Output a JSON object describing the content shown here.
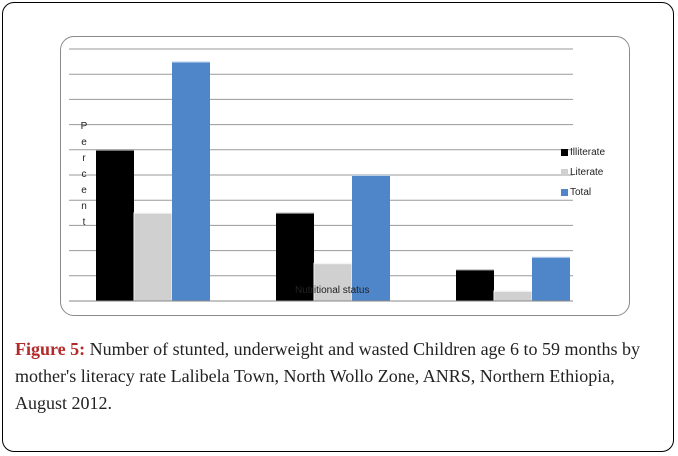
{
  "chart_data": {
    "type": "bar",
    "categories": [
      "",
      "",
      ""
    ],
    "series": [
      {
        "name": "Illiterate",
        "values": [
          12,
          7,
          2.5
        ]
      },
      {
        "name": "Literate",
        "values": [
          7,
          3,
          0.8
        ]
      },
      {
        "name": "Total",
        "values": [
          19,
          10,
          3.5
        ]
      }
    ],
    "ylabel": "Percent",
    "ylabel_chars": [
      "P",
      "e",
      "r",
      "c",
      "e",
      "n",
      "t"
    ],
    "xlabel": "Nutritional status",
    "ylim": [
      0,
      20
    ],
    "grid": true,
    "legend": "right",
    "colors": {
      "Illiterate": "#000000",
      "Literate": "#d0d0d0",
      "Total": "#4f86c9"
    }
  },
  "caption": {
    "label": "Figure 5:",
    "text": " Number of stunted, underweight and wasted Children age 6 to 59 months by mother's literacy rate Lalibela Town, North Wollo Zone, ANRS, Northern Ethiopia, August 2012."
  }
}
